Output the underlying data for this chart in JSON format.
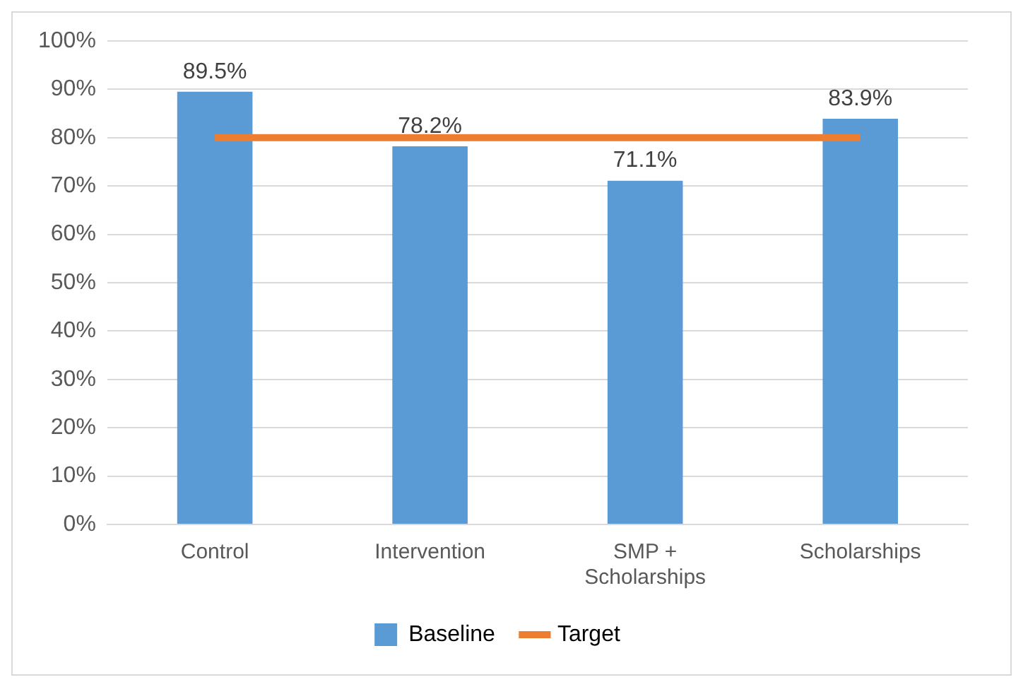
{
  "chart_data": {
    "type": "bar",
    "categories": [
      "Control",
      "Intervention",
      "SMP + Scholarships",
      "Scholarships"
    ],
    "series": [
      {
        "name": "Baseline",
        "color": "#5b9bd5",
        "values": [
          89.5,
          78.2,
          71.1,
          83.9
        ],
        "value_labels": [
          "89.5%",
          "78.2%",
          "71.1%",
          "83.9%"
        ]
      },
      {
        "name": "Target",
        "type": "line",
        "color": "#ed7d31",
        "values": [
          80,
          80,
          80,
          80
        ],
        "marker": "none"
      }
    ],
    "ylim": [
      0,
      100
    ],
    "yticks": [
      {
        "value": 0,
        "label": "0%"
      },
      {
        "value": 10,
        "label": "10%"
      },
      {
        "value": 20,
        "label": "20%"
      },
      {
        "value": 30,
        "label": "30%"
      },
      {
        "value": 40,
        "label": "40%"
      },
      {
        "value": 50,
        "label": "50%"
      },
      {
        "value": 60,
        "label": "60%"
      },
      {
        "value": 70,
        "label": "70%"
      },
      {
        "value": 80,
        "label": "80%"
      },
      {
        "value": 90,
        "label": "90%"
      },
      {
        "value": 100,
        "label": "100%"
      }
    ],
    "grid": "y",
    "legend": "bottom"
  }
}
